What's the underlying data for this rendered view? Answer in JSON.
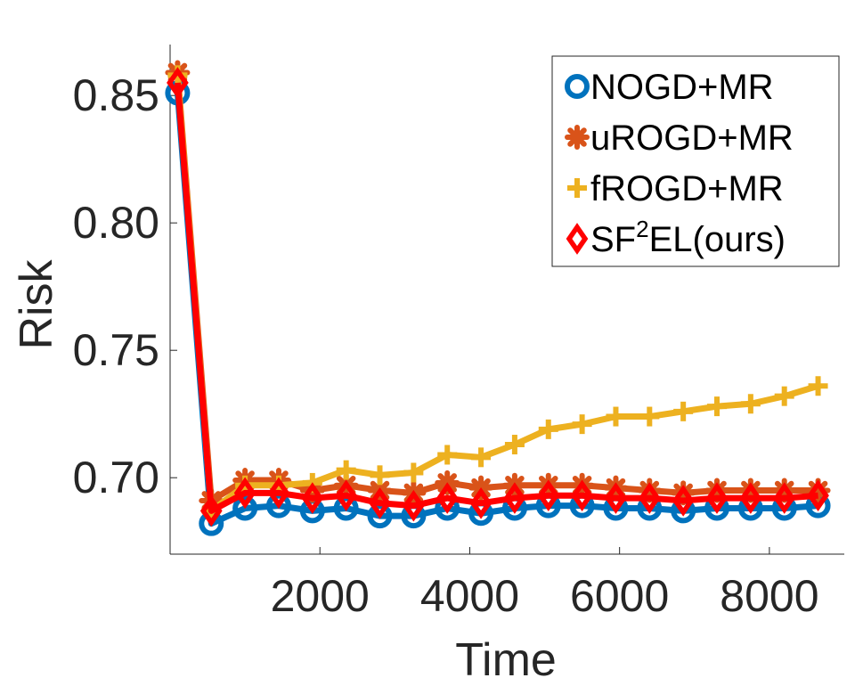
{
  "chart_data": {
    "type": "line",
    "title": "",
    "xlabel": "Time",
    "ylabel": "Risk",
    "xlim": [
      0,
      9000
    ],
    "ylim": [
      0.67,
      0.87
    ],
    "xticks": [
      2000,
      4000,
      6000,
      8000
    ],
    "xtick_labels": [
      "2000",
      "4000",
      "6000",
      "8000"
    ],
    "yticks": [
      0.7,
      0.75,
      0.8,
      0.85
    ],
    "ytick_labels": [
      "0.70",
      "0.75",
      "0.80",
      "0.85"
    ],
    "grid": false,
    "legend_position": "top-right",
    "x": [
      100,
      550,
      1000,
      1450,
      1900,
      2350,
      2800,
      3250,
      3700,
      4150,
      4600,
      5050,
      5500,
      5950,
      6400,
      6850,
      7300,
      7750,
      8200,
      8650
    ],
    "series": [
      {
        "name": "NOGD+MR",
        "legend_label": "NOGD+MR",
        "color": "#0072BD",
        "marker": "circle",
        "values": [
          0.851,
          0.682,
          0.688,
          0.689,
          0.687,
          0.688,
          0.685,
          0.685,
          0.688,
          0.686,
          0.688,
          0.689,
          0.689,
          0.688,
          0.688,
          0.687,
          0.688,
          0.688,
          0.688,
          0.689
        ]
      },
      {
        "name": "uROGD+MR",
        "legend_label": "uROGD+MR",
        "color": "#D95319",
        "marker": "asterisk",
        "values": [
          0.859,
          0.691,
          0.699,
          0.699,
          0.695,
          0.697,
          0.695,
          0.694,
          0.698,
          0.696,
          0.697,
          0.697,
          0.697,
          0.696,
          0.695,
          0.694,
          0.695,
          0.695,
          0.695,
          0.695
        ]
      },
      {
        "name": "fROGD+MR",
        "legend_label": "fROGD+MR",
        "color": "#EDB120",
        "marker": "plus",
        "values": [
          0.858,
          0.687,
          0.697,
          0.697,
          0.698,
          0.703,
          0.701,
          0.702,
          0.709,
          0.708,
          0.713,
          0.719,
          0.721,
          0.724,
          0.724,
          0.726,
          0.728,
          0.729,
          0.732,
          0.736
        ]
      },
      {
        "name": "SF2EL(ours)",
        "legend_label": "SF",
        "legend_sup": "2",
        "legend_suffix": "EL(ours)",
        "color": "#FF0000",
        "marker": "diamond",
        "values": [
          0.855,
          0.687,
          0.694,
          0.694,
          0.692,
          0.693,
          0.69,
          0.689,
          0.692,
          0.69,
          0.692,
          0.693,
          0.693,
          0.692,
          0.692,
          0.691,
          0.692,
          0.692,
          0.692,
          0.693
        ]
      }
    ]
  }
}
